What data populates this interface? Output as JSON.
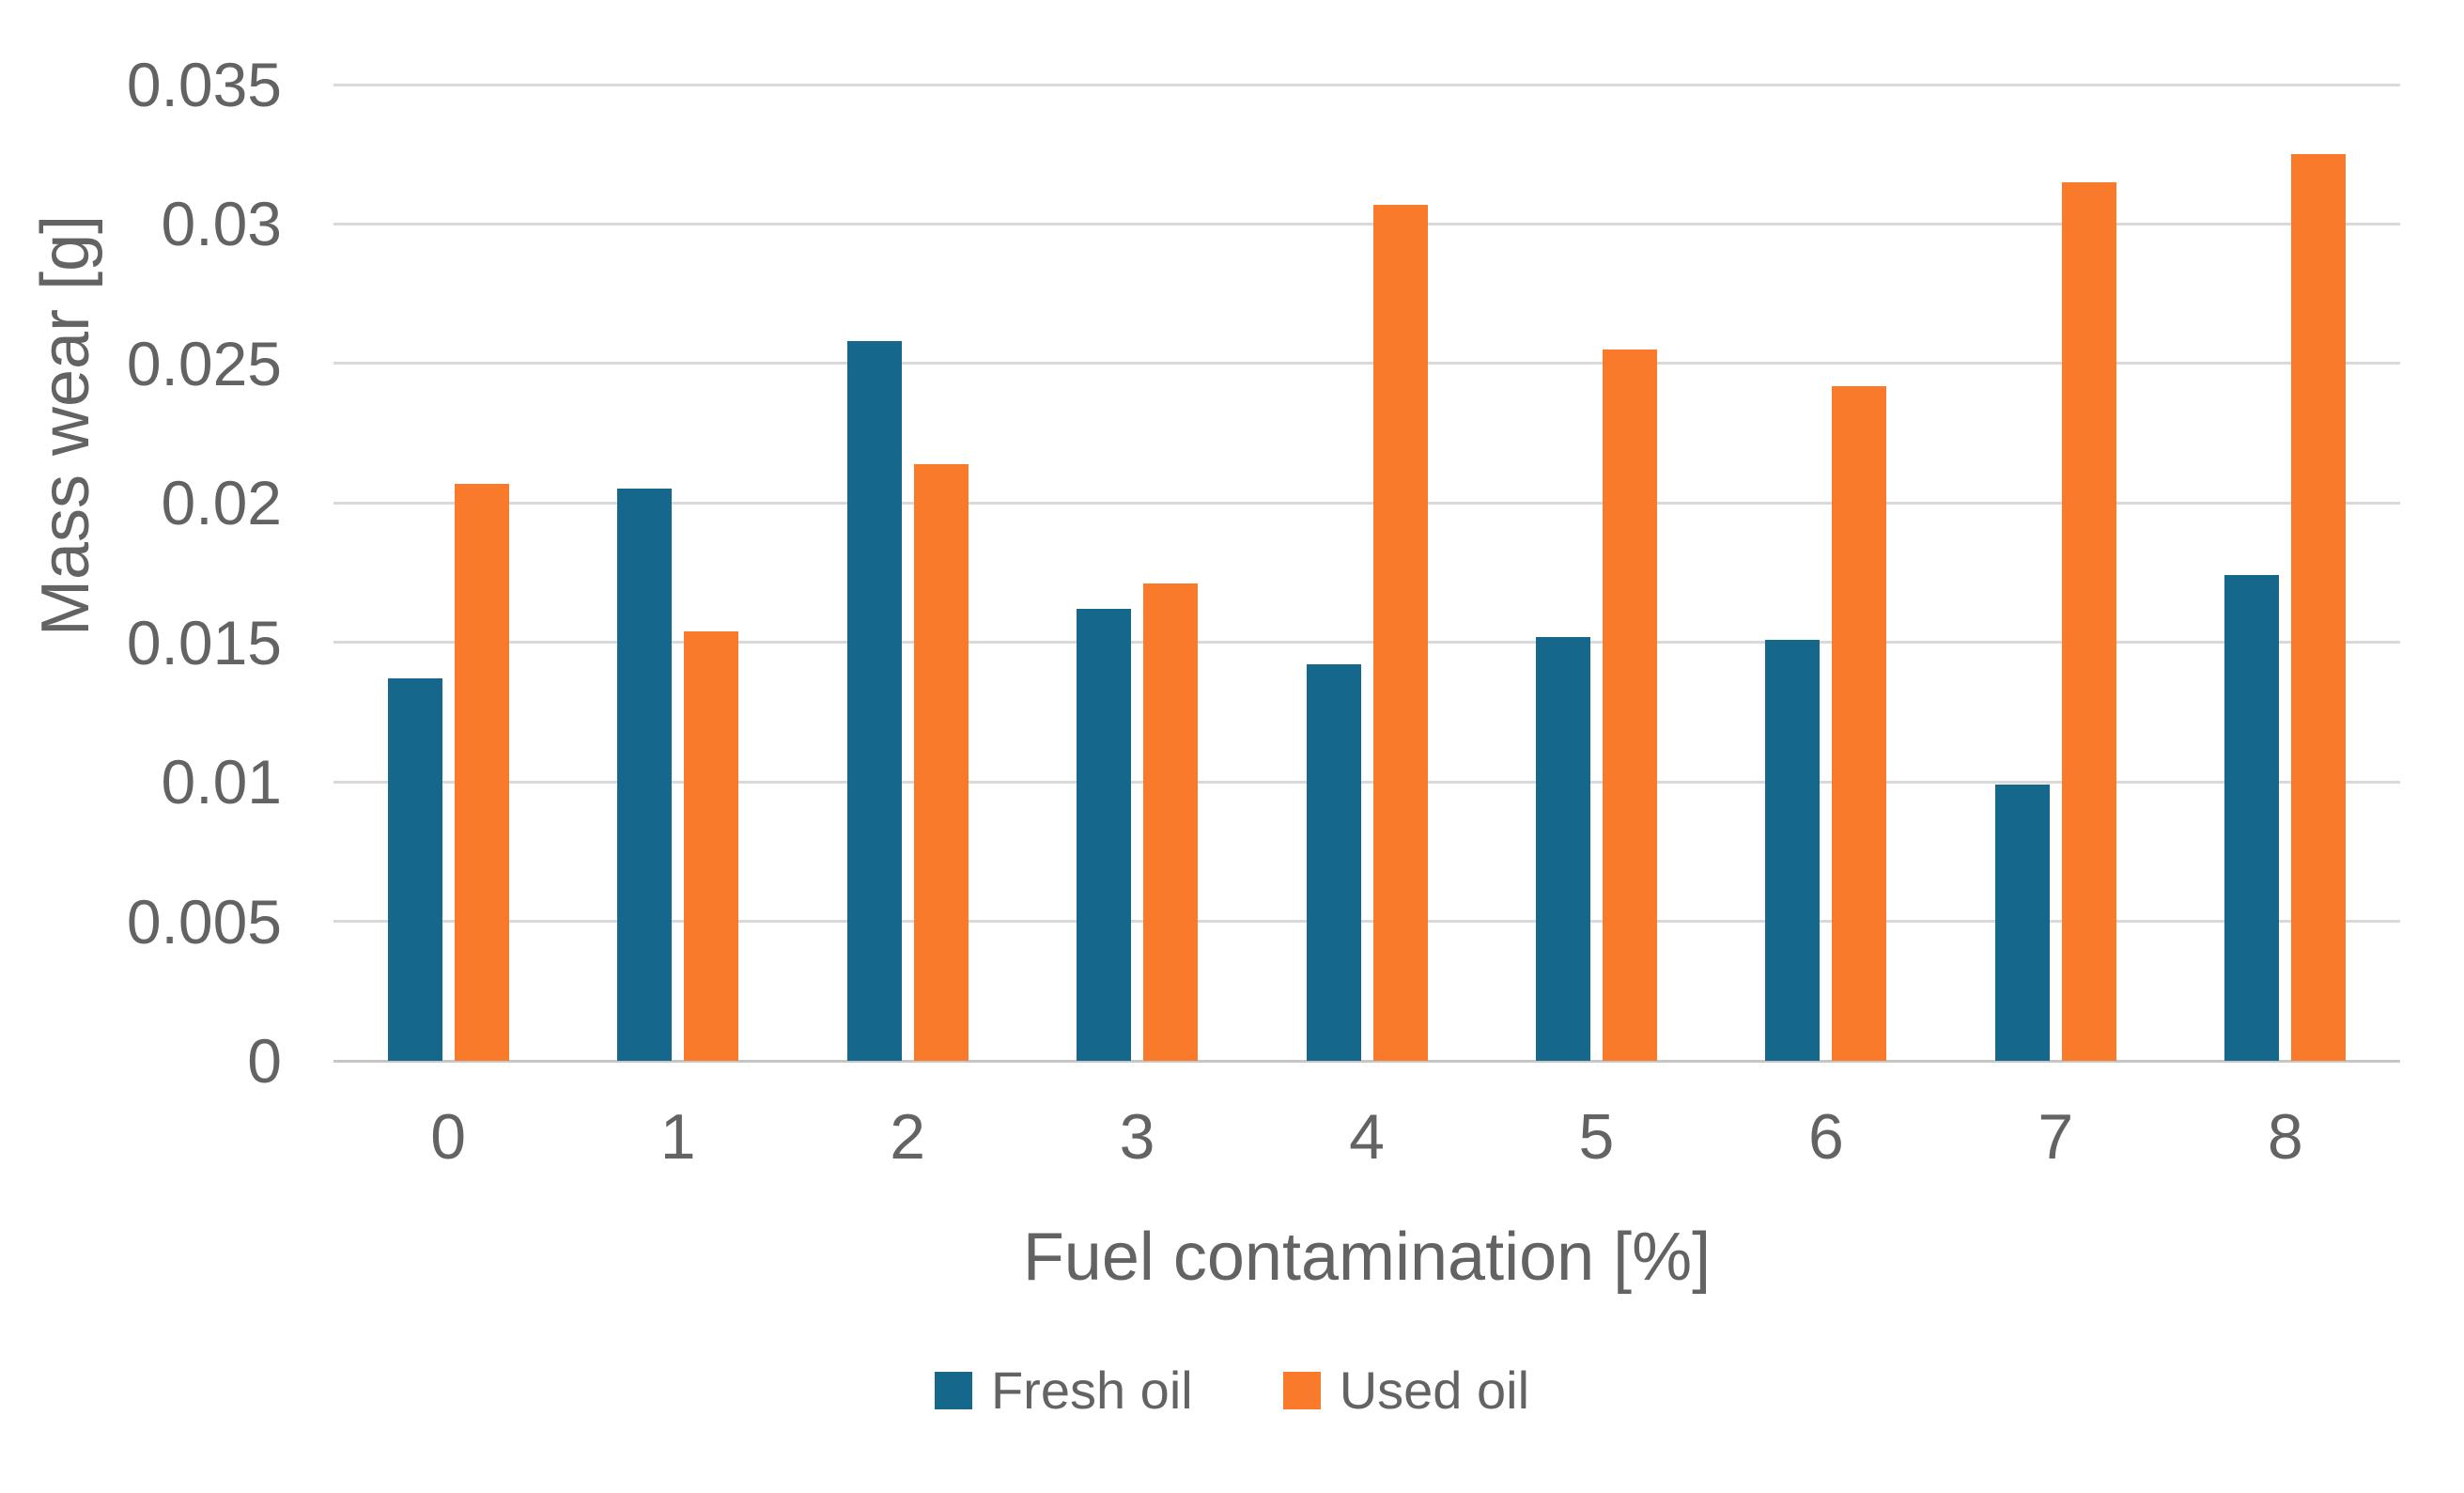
{
  "chart_data": {
    "type": "bar",
    "title": "",
    "xlabel": "Fuel contamination [%]",
    "ylabel": "Mass wear [g]",
    "categories": [
      "0",
      "1",
      "2",
      "3",
      "4",
      "5",
      "6",
      "7",
      "8"
    ],
    "series": [
      {
        "name": "Fresh oil",
        "color": "#15688C",
        "values": [
          0.0137,
          0.0205,
          0.0258,
          0.0162,
          0.0142,
          0.0152,
          0.0151,
          0.0099,
          0.0174
        ]
      },
      {
        "name": "Used oil",
        "color": "#F97A2B",
        "values": [
          0.0207,
          0.0154,
          0.0214,
          0.0171,
          0.0307,
          0.0255,
          0.0242,
          0.0315,
          0.0325
        ]
      }
    ],
    "ylim": [
      0,
      0.035
    ],
    "ytick_step": 0.005,
    "yticks": [
      {
        "value": 0,
        "label": "0"
      },
      {
        "value": 0.005,
        "label": "0.005"
      },
      {
        "value": 0.01,
        "label": "0.01"
      },
      {
        "value": 0.015,
        "label": "0.015"
      },
      {
        "value": 0.02,
        "label": "0.02"
      },
      {
        "value": 0.025,
        "label": "0.025"
      },
      {
        "value": 0.03,
        "label": "0.03"
      },
      {
        "value": 0.035,
        "label": "0.035"
      }
    ],
    "grid": true,
    "legend_position": "bottom"
  },
  "styles": {
    "background": "#FFFFFF",
    "text_color": "#636363",
    "gridline_color": "#D9D9D9",
    "baseline_color": "#C6C6C6",
    "fresh_oil_color": "#15688C",
    "used_oil_color": "#F97A2B"
  }
}
